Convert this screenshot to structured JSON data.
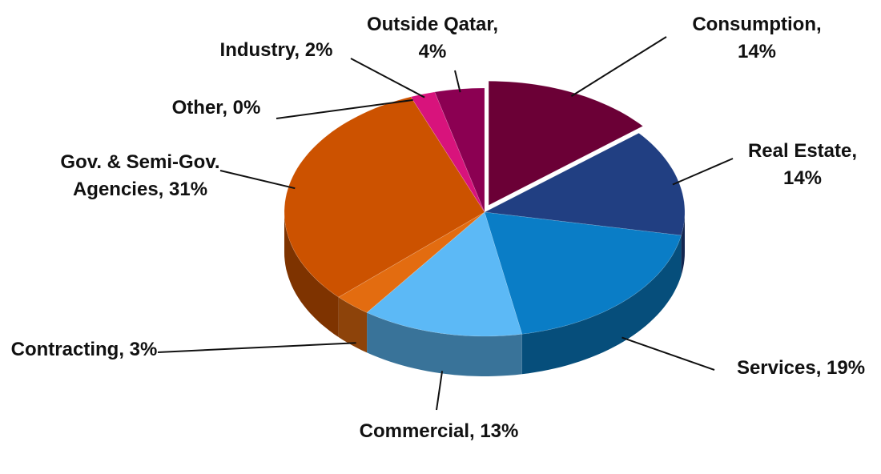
{
  "chart_data": {
    "type": "pie",
    "values": [
      14,
      14,
      19,
      13,
      3,
      31,
      0,
      2,
      4
    ],
    "value_labels": [
      "Consumption, 14%",
      "Real Estate, 14%",
      "Services, 19%",
      "Commercial, 13%",
      "Contracting, 3%",
      "Gov. & Semi-Gov. Agencies, 31%",
      "Other, 0%",
      "Industry, 2%",
      "Outside Qatar, 4%"
    ],
    "colors": [
      "#6b0036",
      "#213f82",
      "#0a7dc6",
      "#5cb9f6",
      "#e36c10",
      "#cc5200",
      "#cc5200",
      "#d8137c",
      "#8b0052"
    ]
  }
}
